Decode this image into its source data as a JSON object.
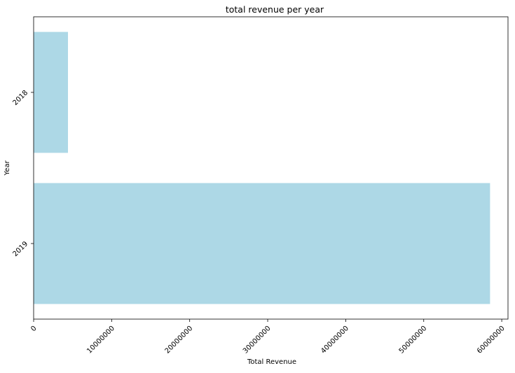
{
  "chart_data": {
    "type": "bar",
    "orientation": "horizontal",
    "title": "total revenue per year",
    "xlabel": "Total Revenue",
    "ylabel": "Year",
    "categories": [
      "2018",
      "2019"
    ],
    "values": [
      4400000,
      58500000
    ],
    "xlim": [
      0,
      60800000
    ],
    "xticks": [
      0,
      10000000,
      20000000,
      30000000,
      40000000,
      50000000,
      60000000
    ],
    "xtick_labels": [
      "0",
      "10000000",
      "20000000",
      "30000000",
      "40000000",
      "50000000",
      "60000000"
    ],
    "grid": false,
    "legend": "none",
    "bar_color": "#add8e6"
  }
}
